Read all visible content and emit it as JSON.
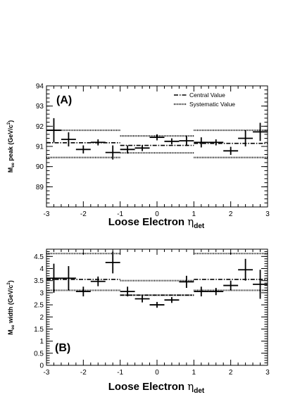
{
  "chart_data": [
    {
      "type": "scatter",
      "panel_label": "(A)",
      "xlabel": {
        "main": "Loose Electron ",
        "greek": "η",
        "sub": "det"
      },
      "ylabel": {
        "pre": "M",
        "sub": "ee",
        "mid": " peak (GeV/c",
        "sup": "2",
        "post": ")"
      },
      "xlim": [
        -3,
        3
      ],
      "ylim": [
        88,
        94
      ],
      "xticks": [
        -3,
        -2,
        -1,
        0,
        1,
        2,
        3
      ],
      "yticks": [
        89,
        90,
        91,
        92,
        93,
        94
      ],
      "legend": {
        "position": "top-right",
        "entries": [
          {
            "label": "Central Value",
            "style": "dash-dot"
          },
          {
            "label": "Systematic Value",
            "style": "dotted"
          }
        ]
      },
      "points": [
        {
          "x": -2.8,
          "xerr": 0.2,
          "y": 91.8,
          "yerr": 0.6
        },
        {
          "x": -2.4,
          "xerr": 0.2,
          "y": 91.35,
          "yerr": 0.35
        },
        {
          "x": -2.0,
          "xerr": 0.2,
          "y": 90.85,
          "yerr": 0.2
        },
        {
          "x": -1.6,
          "xerr": 0.2,
          "y": 91.2,
          "yerr": 0.15
        },
        {
          "x": -1.2,
          "xerr": 0.2,
          "y": 90.7,
          "yerr": 0.35
        },
        {
          "x": -0.8,
          "xerr": 0.2,
          "y": 90.85,
          "yerr": 0.2
        },
        {
          "x": -0.4,
          "xerr": 0.2,
          "y": 90.92,
          "yerr": 0.15
        },
        {
          "x": 0.0,
          "xerr": 0.2,
          "y": 91.45,
          "yerr": 0.15
        },
        {
          "x": 0.4,
          "xerr": 0.2,
          "y": 91.25,
          "yerr": 0.15
        },
        {
          "x": 0.8,
          "xerr": 0.2,
          "y": 91.28,
          "yerr": 0.25
        },
        {
          "x": 1.2,
          "xerr": 0.2,
          "y": 91.2,
          "yerr": 0.25
        },
        {
          "x": 1.6,
          "xerr": 0.2,
          "y": 91.2,
          "yerr": 0.15
        },
        {
          "x": 2.0,
          "xerr": 0.2,
          "y": 90.78,
          "yerr": 0.2
        },
        {
          "x": 2.4,
          "xerr": 0.2,
          "y": 91.4,
          "yerr": 0.4
        },
        {
          "x": 2.8,
          "xerr": 0.2,
          "y": 91.72,
          "yerr": 0.45
        }
      ],
      "central_lines": [
        {
          "x": [
            -3,
            -1
          ],
          "y": 91.18
        },
        {
          "x": [
            -1,
            1
          ],
          "y": 91.05
        },
        {
          "x": [
            1,
            3
          ],
          "y": 91.15
        }
      ],
      "systematic_lines": [
        {
          "x": [
            -3,
            -1
          ],
          "y": 91.8
        },
        {
          "x": [
            -3,
            -1
          ],
          "y": 90.45
        },
        {
          "x": [
            -1,
            1
          ],
          "y": 91.52
        },
        {
          "x": [
            -1,
            1
          ],
          "y": 90.68
        },
        {
          "x": [
            1,
            3
          ],
          "y": 91.8
        },
        {
          "x": [
            1,
            3
          ],
          "y": 90.45
        }
      ]
    },
    {
      "type": "scatter",
      "panel_label": "(B)",
      "xlabel": {
        "main": "Loose Electron  ",
        "greek": "η",
        "sub": "det"
      },
      "ylabel": {
        "pre": "M",
        "sub": "ee",
        "mid": " width (GeV/c",
        "sup": "2",
        "post": ")"
      },
      "xlim": [
        -3,
        3
      ],
      "ylim": [
        0,
        4.8
      ],
      "xticks": [
        -3,
        -2,
        -1,
        0,
        1,
        2,
        3
      ],
      "yticks": [
        0,
        0.5,
        1,
        1.5,
        2,
        2.5,
        3,
        3.5,
        4,
        4.5
      ],
      "points": [
        {
          "x": -2.8,
          "xerr": 0.2,
          "y": 3.6,
          "yerr": 0.6
        },
        {
          "x": -2.4,
          "xerr": 0.2,
          "y": 3.6,
          "yerr": 0.5
        },
        {
          "x": -2.0,
          "xerr": 0.2,
          "y": 3.05,
          "yerr": 0.2
        },
        {
          "x": -1.6,
          "xerr": 0.2,
          "y": 3.47,
          "yerr": 0.2
        },
        {
          "x": -1.2,
          "xerr": 0.2,
          "y": 4.25,
          "yerr": 0.45
        },
        {
          "x": -0.8,
          "xerr": 0.2,
          "y": 3.05,
          "yerr": 0.2
        },
        {
          "x": -0.4,
          "xerr": 0.2,
          "y": 2.75,
          "yerr": 0.15
        },
        {
          "x": 0.0,
          "xerr": 0.2,
          "y": 2.5,
          "yerr": 0.12
        },
        {
          "x": 0.4,
          "xerr": 0.2,
          "y": 2.7,
          "yerr": 0.12
        },
        {
          "x": 0.8,
          "xerr": 0.2,
          "y": 3.45,
          "yerr": 0.25
        },
        {
          "x": 1.2,
          "xerr": 0.2,
          "y": 3.05,
          "yerr": 0.2
        },
        {
          "x": 1.6,
          "xerr": 0.2,
          "y": 3.05,
          "yerr": 0.15
        },
        {
          "x": 2.0,
          "xerr": 0.2,
          "y": 3.3,
          "yerr": 0.2
        },
        {
          "x": 2.4,
          "xerr": 0.2,
          "y": 3.95,
          "yerr": 0.45
        },
        {
          "x": 2.8,
          "xerr": 0.2,
          "y": 3.35,
          "yerr": 0.6
        }
      ],
      "central_lines": [
        {
          "x": [
            -3,
            -1
          ],
          "y": 3.55
        },
        {
          "x": [
            -1,
            1
          ],
          "y": 2.9
        },
        {
          "x": [
            1,
            3
          ],
          "y": 3.55
        }
      ],
      "systematic_lines": [
        {
          "x": [
            -3,
            -1
          ],
          "y": 4.62
        },
        {
          "x": [
            -3,
            -1
          ],
          "y": 3.1
        },
        {
          "x": [
            -1,
            1
          ],
          "y": 3.5
        },
        {
          "x": [
            -1,
            1
          ],
          "y": 2.9
        },
        {
          "x": [
            1,
            3
          ],
          "y": 4.62
        },
        {
          "x": [
            1,
            3
          ],
          "y": 3.1
        }
      ]
    }
  ]
}
